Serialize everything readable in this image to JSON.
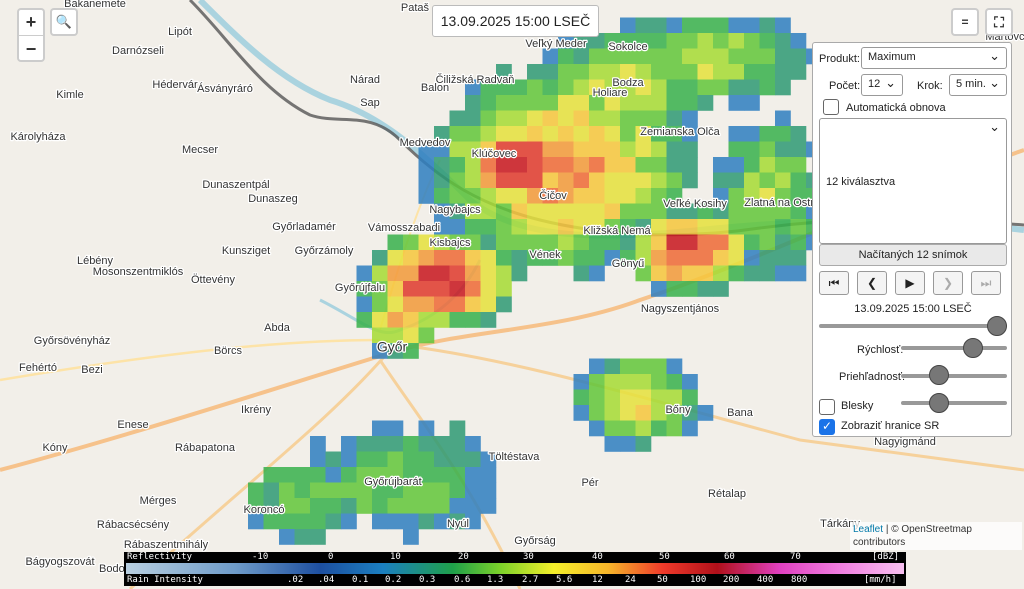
{
  "timestamp": "13.09.2025 15:00 LSEČ",
  "controls": {
    "zoom_in": "+",
    "zoom_out": "−",
    "layers": "=",
    "fullscreen": "⛶"
  },
  "panel": {
    "product_label": "Produkt:",
    "product": "Maximum",
    "count_label": "Počet:",
    "count": "12",
    "step_label": "Krok:",
    "step": "5 min.",
    "auto_refresh": "Automatická obnova",
    "selection": "12 kiválasztva",
    "loaded": "Načítaných 12 snímok",
    "time": "13.09.2025 15:00 LSEČ",
    "speed": "Rýchlosť:",
    "opacity": "Priehľadnosť:",
    "lightning": "Blesky",
    "borders": "Zobraziť hranice SR"
  },
  "attribution": {
    "leaflet": "Leaflet",
    "osm": "| © OpenStreetmap contributors"
  },
  "legend": {
    "reflectivity_label": "Reflectivity",
    "reflectivity_ticks": [
      "-10",
      "0",
      "10",
      "20",
      "30",
      "40",
      "50",
      "60",
      "70"
    ],
    "reflectivity_unit": "[dBZ]",
    "rain_label": "Rain Intensity",
    "rain_ticks": [
      ".02",
      ".04",
      "0.1",
      "0.2",
      "0.3",
      "0.6",
      "1.3",
      "2.7",
      "5.6",
      "12",
      "24",
      "50",
      "100",
      "200",
      "400",
      "800"
    ],
    "rain_unit": "[mm/h]"
  },
  "places": [
    "Bakanemete",
    "Pataš",
    "Lipót",
    "Darnózseli",
    "Hédervár",
    "Ásványráró",
    "Nárad",
    "Čiližská Radvaň",
    "Balon",
    "Kimle",
    "Sap",
    "Medvedov",
    "Mecser",
    "Károlyháza",
    "Dunaszentpál",
    "Dunaszeg",
    "Vámosszabadi",
    "Győrladamér",
    "Kunsziget",
    "Győrzámoly",
    "Lébény",
    "Mosonszentmiklós",
    "Öttevény",
    "Nagybajcs",
    "Kisbajcs",
    "Győrújfalu",
    "Abda",
    "Győrsövényház",
    "Börcs",
    "Győr",
    "Fehértó",
    "Bezi",
    "Ikrény",
    "Enese",
    "Kóny",
    "Rábapatona",
    "Mérges",
    "Koroncó",
    "Győrújbarát",
    "Töltéstava",
    "Pér",
    "Nyúl",
    "Rábacsécsény",
    "Rábaszentmihály",
    "Bágyogszovát",
    "Bodonhely",
    "Győrság",
    "Rétalap",
    "Tárkány",
    "Nagyigmánd",
    "Bana",
    "Bőny",
    "Nagyszentjános",
    "Gönyű",
    "Vének",
    "Kližská Nemá",
    "Veľké Kosihy",
    "Zlatná na Ostrove",
    "Čičov",
    "Klúčovec",
    "Zemianska Olča",
    "Holiare",
    "Bodza",
    "Sokolce",
    "Veľký Meder",
    "Martovce"
  ]
}
